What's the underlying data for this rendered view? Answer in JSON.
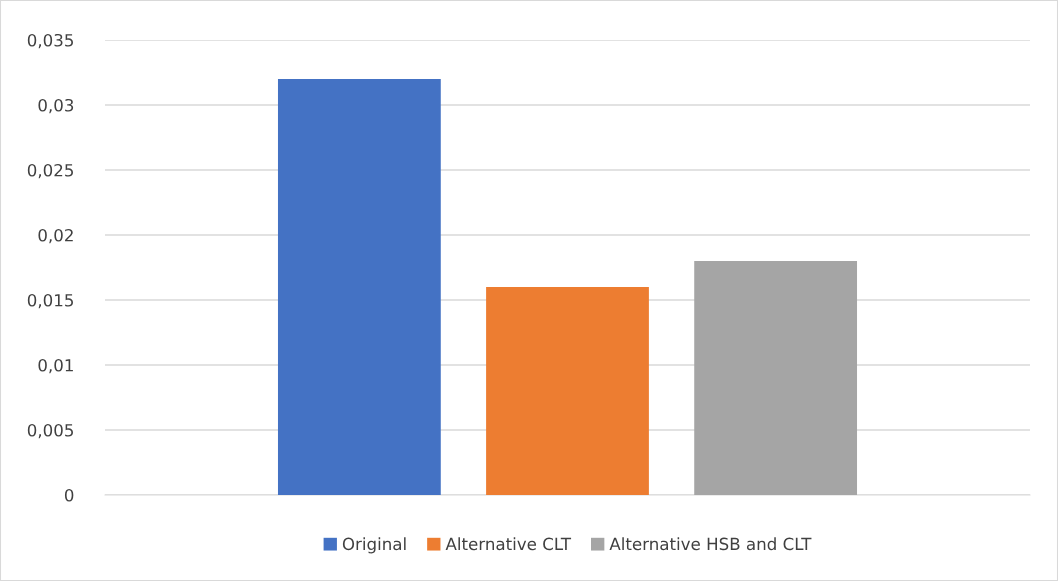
{
  "chart_data": {
    "type": "bar",
    "categories": [
      null
    ],
    "series": [
      {
        "name": "Original",
        "color": "#4472c4",
        "values": [
          0.032
        ]
      },
      {
        "name": "Alternative CLT",
        "color": "#ed7d31",
        "values": [
          0.016
        ]
      },
      {
        "name": "Alternative HSB and CLT",
        "color": "#a5a5a5",
        "values": [
          0.018
        ]
      }
    ],
    "ylim": [
      0,
      0.035
    ],
    "yticks": [
      0,
      {
        "value": 0.005,
        "label": "0,005"
      },
      {
        "value": 0.01,
        "label": "0,01"
      },
      {
        "value": 0.015,
        "label": "0,015"
      },
      {
        "value": 0.02,
        "label": "0,02"
      },
      {
        "value": 0.025,
        "label": "0,025"
      },
      {
        "value": 0.03,
        "label": "0,03"
      },
      {
        "value": 0.035,
        "label": "0,035"
      }
    ],
    "grid": "y",
    "legend": "bottom"
  }
}
